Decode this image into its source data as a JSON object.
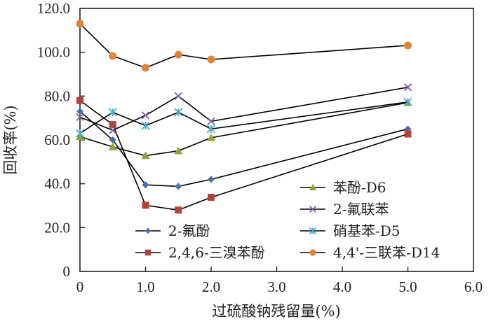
{
  "chart_data": {
    "type": "line",
    "title": "",
    "xlabel": "过硫酸钠残留量(%)",
    "ylabel": "回收率(%)",
    "xlim": [
      0,
      6
    ],
    "ylim": [
      0,
      120
    ],
    "xticks": [
      0,
      1,
      2,
      3,
      4,
      5,
      6
    ],
    "xtick_labels": [
      "0",
      "1.0",
      "2.0",
      "3.0",
      "4.0",
      "5.0",
      "6.0"
    ],
    "yticks": [
      0,
      20,
      40,
      60,
      80,
      100,
      120
    ],
    "ytick_labels": [
      "0",
      "20.0",
      "40.0",
      "60.0",
      "80.0",
      "100.0",
      "120.0"
    ],
    "grid": false,
    "legend_position": "bottom-right",
    "x": [
      0,
      0.5,
      1.0,
      1.5,
      2.0,
      5.0
    ],
    "series": [
      {
        "name": "2-氟酚",
        "marker": "diamond",
        "color": "#4F6DA8",
        "values": [
          73.0,
          60.0,
          39.5,
          38.8,
          42.0,
          65.0
        ]
      },
      {
        "name": "2,4,6-三溴苯酚",
        "marker": "square",
        "color": "#B0413E",
        "values": [
          78.0,
          67.0,
          30.2,
          28.0,
          33.8,
          62.7
        ]
      },
      {
        "name": "苯酚-D6",
        "marker": "triangle",
        "color": "#8FA33F",
        "values": [
          61.5,
          56.8,
          52.8,
          55.0,
          61.0,
          77.0
        ]
      },
      {
        "name": "2-氟联苯",
        "marker": "cross",
        "color": "#7E5A9B",
        "values": [
          70.4,
          64.4,
          71.2,
          80.0,
          68.5,
          84.0
        ]
      },
      {
        "name": "硝基苯-D5",
        "marker": "star",
        "color": "#4BACC6",
        "values": [
          63.0,
          72.6,
          66.5,
          72.6,
          65.0,
          77.3
        ]
      },
      {
        "name": "4,4'-三联苯-D14",
        "marker": "circle",
        "color": "#E0843A",
        "values": [
          113.0,
          98.3,
          92.9,
          98.9,
          96.7,
          103.1
        ]
      }
    ],
    "legend_order": [
      2,
      3,
      0,
      4,
      1,
      5
    ]
  }
}
